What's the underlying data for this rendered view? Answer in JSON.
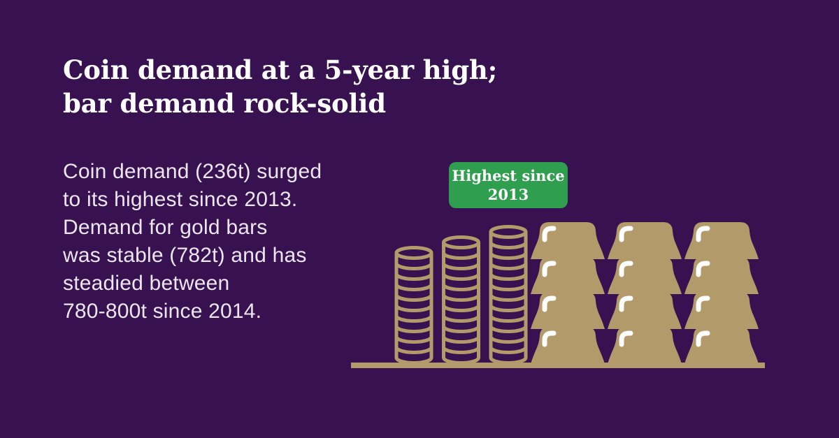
{
  "colors": {
    "background": "#371150",
    "gold": "#b39a6a",
    "badge_green": "#2f9e4e",
    "headline_text": "#ffffff",
    "body_text": "#ebe6f0",
    "badge_text": "#ffffff",
    "bar_highlight": "#ffffff"
  },
  "headline": {
    "lines": [
      "Coin demand at a 5-year high;",
      "bar demand rock-solid"
    ]
  },
  "body": {
    "lines": [
      "Coin demand (236t) surged",
      "to its highest since 2013.",
      "Demand for gold bars",
      "was stable (782t) and has",
      "steadied between",
      "780-800t since 2014."
    ]
  },
  "badge": {
    "lines": [
      "Highest since",
      "2013"
    ]
  },
  "illustration": {
    "coin_stacks": [
      {
        "coins": 10
      },
      {
        "coins": 11
      },
      {
        "coins": 12
      }
    ],
    "gold_bars": {
      "columns": 3,
      "rows": 4
    }
  },
  "chart_data": {
    "type": "pictogram",
    "title": "Coin demand at a 5-year high; bar demand rock-solid",
    "annotation": "Highest since 2013",
    "series": [
      {
        "name": "Coin demand",
        "value_tonnes": 236,
        "note": "Highest since 2013",
        "pictogram": "3 coin stacks rising left to right with 10, 11 and 12 coins"
      },
      {
        "name": "Bar demand",
        "value_tonnes": 782,
        "note": "Steadied between 780-800t since 2014",
        "pictogram": "12 gold bars stacked in 3 columns x 4 rows"
      }
    ]
  }
}
